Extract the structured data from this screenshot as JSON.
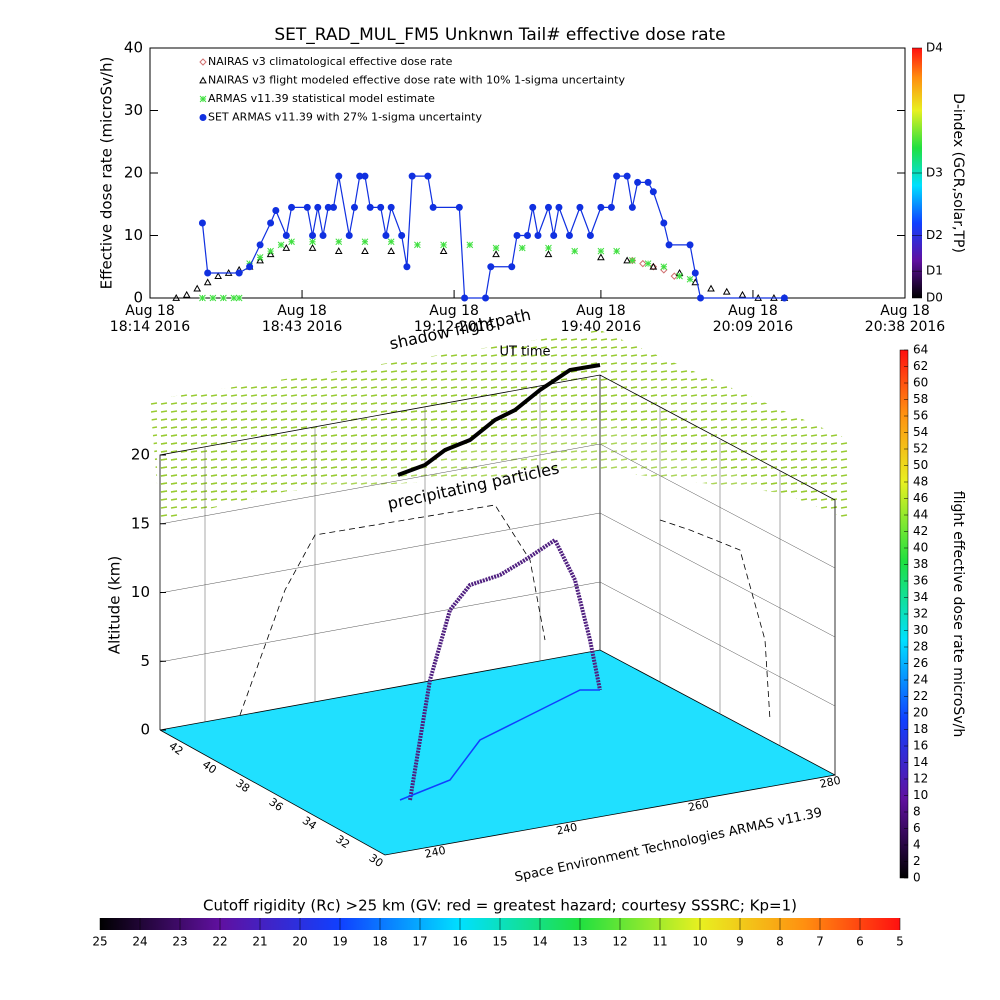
{
  "chart_data": [
    {
      "type": "line",
      "title": "SET_RAD_MUL_FM5 Unknwn Tail#  effective dose rate",
      "ylabel": "Effective dose rate (microSv/h)",
      "xlabel": "UT time",
      "xlim": [
        "18:14",
        "20:38"
      ],
      "xticks": [
        {
          "value": "18:14",
          "label": "Aug 18\n18:14 2016"
        },
        {
          "value": "18:43",
          "label": "Aug 18\n18:43 2016"
        },
        {
          "value": "19:12",
          "label": "Aug 18\n19:12 2016"
        },
        {
          "value": "19:40",
          "label": "Aug 18\n19:40 2016"
        },
        {
          "value": "20:09",
          "label": "Aug 18\n20:09 2016"
        },
        {
          "value": "20:38",
          "label": "Aug 18\n20:38 2016"
        }
      ],
      "ylim": [
        0,
        40
      ],
      "yticks": [
        0,
        10,
        20,
        30,
        40
      ],
      "series": [
        {
          "name": "NAIRAS v3 climatological effective dose rate",
          "color": "#d07070",
          "marker": "diamond",
          "line": false,
          "x": [
            "19:46",
            "19:48",
            "19:50",
            "19:52",
            "19:54"
          ],
          "values": [
            6,
            5.5,
            5,
            4.5,
            3.5
          ]
        },
        {
          "name": "NAIRAS v3 flight modeled effective dose rate with 10% 1-sigma uncertainty",
          "color": "#000000",
          "marker": "triangle",
          "line": false,
          "x": [
            "18:19",
            "18:21",
            "18:23",
            "18:25",
            "18:27",
            "18:29",
            "18:31",
            "18:33",
            "18:35",
            "18:37",
            "18:40",
            "18:45",
            "18:50",
            "18:55",
            "19:00",
            "19:10",
            "19:20",
            "19:30",
            "19:40",
            "19:45",
            "19:50",
            "19:55",
            "19:58",
            "20:01",
            "20:04",
            "20:07",
            "20:10",
            "20:13",
            "20:15"
          ],
          "values": [
            0,
            0.5,
            1.5,
            2.5,
            3.5,
            4,
            4.5,
            5,
            6,
            7,
            8,
            8,
            7.5,
            7.5,
            7.5,
            7.5,
            7,
            7,
            6.5,
            6,
            5,
            4,
            2.5,
            1.5,
            1,
            0.5,
            0,
            0,
            0
          ]
        },
        {
          "name": "ARMAS v11.39 statistical model estimate",
          "color": "#40e040",
          "marker": "asterisk",
          "line": false,
          "x": [
            "18:24",
            "18:26",
            "18:28",
            "18:30",
            "18:31",
            "18:33",
            "18:35",
            "18:37",
            "18:39",
            "18:41",
            "18:45",
            "18:50",
            "18:55",
            "19:00",
            "19:05",
            "19:10",
            "19:15",
            "19:20",
            "19:25",
            "19:30",
            "19:35",
            "19:40",
            "19:43",
            "19:46",
            "19:49",
            "19:52",
            "19:55",
            "19:57"
          ],
          "values": [
            0,
            0,
            0,
            0,
            0,
            5.5,
            6.5,
            7.5,
            8.5,
            9,
            9,
            9,
            9,
            9,
            8.5,
            8.5,
            8.5,
            8,
            8,
            8,
            7.5,
            7.5,
            7.5,
            6,
            5.5,
            5,
            3.5,
            3
          ]
        },
        {
          "name": "SET ARMAS v11.39 with 27% 1-sigma uncertainty",
          "color": "#1030e0",
          "marker": "circle",
          "line": true,
          "x": [
            "18:24",
            "18:25",
            "18:31",
            "18:33",
            "18:35",
            "18:37",
            "18:38",
            "18:40",
            "18:41",
            "18:44",
            "18:45",
            "18:46",
            "18:47",
            "18:48",
            "18:49",
            "18:50",
            "18:52",
            "18:53",
            "18:54",
            "18:55",
            "18:56",
            "18:58",
            "18:59",
            "19:00",
            "19:02",
            "19:03",
            "19:04",
            "19:07",
            "19:08",
            "19:13",
            "19:14",
            "19:18",
            "19:19",
            "19:23",
            "19:24",
            "19:26",
            "19:27",
            "19:28",
            "19:30",
            "19:31",
            "19:32",
            "19:34",
            "19:36",
            "19:38",
            "19:40",
            "19:42",
            "19:43",
            "19:45",
            "19:46",
            "19:47",
            "19:49",
            "19:50",
            "19:52",
            "19:53",
            "19:57",
            "19:58",
            "19:59",
            "20:15"
          ],
          "values": [
            12,
            4,
            4,
            5,
            8.5,
            12,
            14,
            10,
            14.5,
            14.5,
            10,
            14.5,
            10,
            14.5,
            14.5,
            19.5,
            10,
            14.5,
            19.5,
            19.5,
            14.5,
            14.5,
            10,
            14.5,
            10,
            5,
            19.5,
            19.5,
            14.5,
            14.5,
            0,
            0,
            5,
            5,
            10,
            10,
            14.5,
            10,
            14.5,
            10,
            14.5,
            10,
            14.5,
            10,
            14.5,
            14.5,
            19.5,
            19.5,
            14.5,
            18.5,
            18.5,
            17,
            12,
            8.5,
            8.5,
            4,
            0,
            0
          ]
        }
      ]
    }
  ],
  "dindex_bar": {
    "label": "D-index (GCR,solar,TP)",
    "ticks": [
      {
        "value": 0,
        "label": "D0"
      },
      {
        "value": 4.3,
        "label": "D1"
      },
      {
        "value": 10,
        "label": "D2"
      },
      {
        "value": 20,
        "label": "D3"
      },
      {
        "value": 40,
        "label": "D4"
      }
    ]
  },
  "plot3d": {
    "annotation_shadow": "shadow flightpath",
    "annotation_particles": "precipitating particles",
    "zlabel": "Altitude (km)",
    "zlim": [
      0,
      20
    ],
    "zticks": [
      0,
      5,
      10,
      15,
      20
    ],
    "lat_ticks": [
      "42",
      "40",
      "38",
      "36",
      "34",
      "32",
      "30"
    ],
    "lon_ticks": [
      "240",
      "240",
      "260",
      "280"
    ],
    "credit": "Space Environment Technologies ARMAS v11.39"
  },
  "dose_bar": {
    "label": "flight effective dose rate microSv/h",
    "lim": [
      0,
      64
    ],
    "ticks": [
      0,
      2,
      4,
      6,
      8,
      10,
      12,
      14,
      16,
      18,
      20,
      22,
      24,
      26,
      28,
      30,
      32,
      34,
      36,
      38,
      40,
      42,
      44,
      46,
      48,
      50,
      52,
      54,
      56,
      58,
      60,
      62,
      64
    ]
  },
  "rigidity_bar": {
    "label": "Cutoff rigidity (Rc) >25 km (GV: red = greatest hazard; courtesy SSSRC; Kp=1)",
    "ticks": [
      25,
      24,
      23,
      22,
      21,
      20,
      19,
      18,
      17,
      16,
      15,
      14,
      13,
      12,
      11,
      10,
      9,
      8,
      7,
      6,
      5
    ]
  }
}
